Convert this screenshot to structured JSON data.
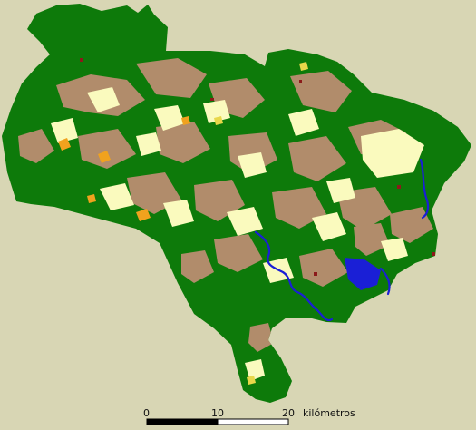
{
  "legend_colors": {
    "forest": "#0d7a0a",
    "scrub": "#b18c6b",
    "cropland": "#fafabe",
    "water": "#1a1fd6",
    "orchard": "#f0a21e",
    "urban": "#8b1a1a",
    "yellow_patch": "#e8d74a",
    "background": "#d8d6b4"
  },
  "scale_bar": {
    "ticks": [
      "0",
      "10",
      "20"
    ],
    "unit": "kilómetros"
  }
}
